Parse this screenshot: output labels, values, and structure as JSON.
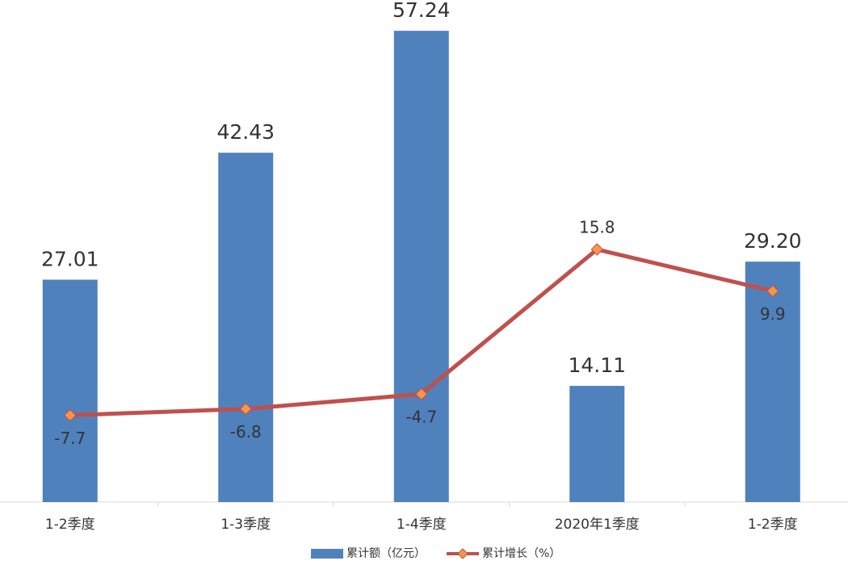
{
  "chart_data": {
    "type": "bar-line",
    "categories": [
      "1-2季度",
      "1-3季度",
      "1-4季度",
      "2020年1季度",
      "1-2季度"
    ],
    "series": [
      {
        "name": "累计额（亿元）",
        "type": "bar",
        "color": "#4f81bd",
        "values": [
          27.01,
          42.43,
          57.24,
          14.11,
          29.2
        ],
        "value_labels": [
          "27.01",
          "42.43",
          "57.24",
          "14.11",
          "29.20"
        ]
      },
      {
        "name": "累计增长（%）",
        "type": "line",
        "axis": "y2",
        "color": "#c0504d",
        "marker_color": "#f79646",
        "values": [
          -7.7,
          -6.8,
          -4.7,
          15.8,
          9.9
        ]
      }
    ],
    "ylim": [
      0,
      60
    ],
    "y2lim": [
      -20,
      50
    ],
    "legend": "bottom"
  }
}
